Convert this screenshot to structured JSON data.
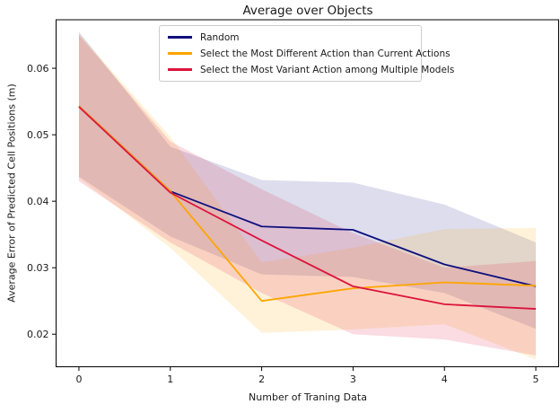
{
  "chart_data": {
    "type": "line",
    "title": "Average over Objects",
    "xlabel": "Number of Traning Data",
    "ylabel": "Average Error of Predicted Cell Positions (m)",
    "x": [
      0,
      1,
      2,
      3,
      4,
      5
    ],
    "xlim": [
      -0.25,
      5.25
    ],
    "ylim": [
      0.0151,
      0.0673
    ],
    "xticks": [
      0,
      1,
      2,
      3,
      4,
      5
    ],
    "xtick_labels": [
      "0",
      "1",
      "2",
      "3",
      "4",
      "5"
    ],
    "yticks": [
      0.02,
      0.03,
      0.04,
      0.05,
      0.06
    ],
    "ytick_labels": [
      "0.02",
      "0.03",
      "0.04",
      "0.05",
      "0.06"
    ],
    "grid": false,
    "legend_position": "upper-center-inside",
    "series": [
      {
        "name": "Random",
        "color": "#10107e",
        "values": [
          0.0543,
          0.0415,
          0.0362,
          0.0357,
          0.0305,
          0.0272
        ],
        "band_low": [
          0.0437,
          0.0347,
          0.029,
          0.0286,
          0.0262,
          0.0208
        ],
        "band_high": [
          0.0655,
          0.0482,
          0.0432,
          0.0428,
          0.0395,
          0.0338
        ],
        "band_opacity": 0.14
      },
      {
        "name": "Select the Most Different Action than Current Actions",
        "color": "#ffa500",
        "values": [
          0.0543,
          0.0415,
          0.025,
          0.0269,
          0.0278,
          0.0273
        ],
        "band_low": [
          0.0435,
          0.033,
          0.0202,
          0.0207,
          0.0215,
          0.0162
        ],
        "band_high": [
          0.0652,
          0.0497,
          0.0308,
          0.033,
          0.0358,
          0.036
        ],
        "band_opacity": 0.15
      },
      {
        "name": "Select the Most Variant Action among Multiple Models",
        "color": "#dc143c",
        "values": [
          0.0542,
          0.0413,
          0.0341,
          0.0272,
          0.0245,
          0.0238
        ],
        "band_low": [
          0.043,
          0.0338,
          0.0262,
          0.02,
          0.0192,
          0.0168
        ],
        "band_high": [
          0.065,
          0.049,
          0.0418,
          0.0352,
          0.03,
          0.031
        ],
        "band_opacity": 0.15
      }
    ]
  }
}
